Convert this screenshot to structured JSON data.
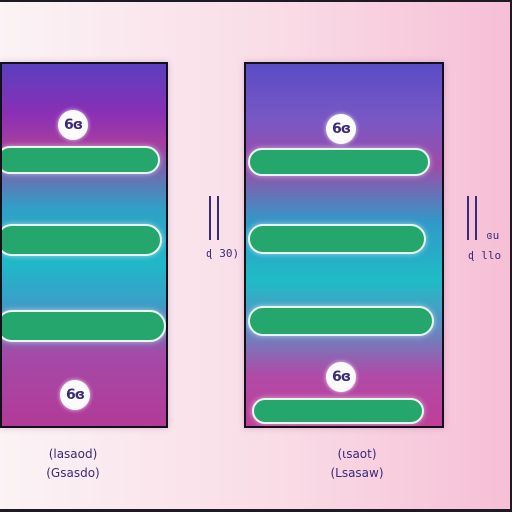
{
  "left_panel": {
    "top_badge": "6ɞ",
    "bottom_badge": "6ɞ",
    "caption_line1": "(lasaod)",
    "caption_line2": "(Gsasdo)"
  },
  "middle_label": {
    "text": "ɖ 30)"
  },
  "right_panel": {
    "top_badge": "6ɞ",
    "lower_badge": "6ɞ",
    "caption_line1": "(ɩsaot)",
    "caption_line2": "(Lsasaw)"
  },
  "right_label": {
    "line1": "ɞu",
    "line2": "ɖ llo"
  },
  "colors": {
    "pill": "#25a66c",
    "text": "#3b2a78",
    "background": "#f9dce6"
  }
}
